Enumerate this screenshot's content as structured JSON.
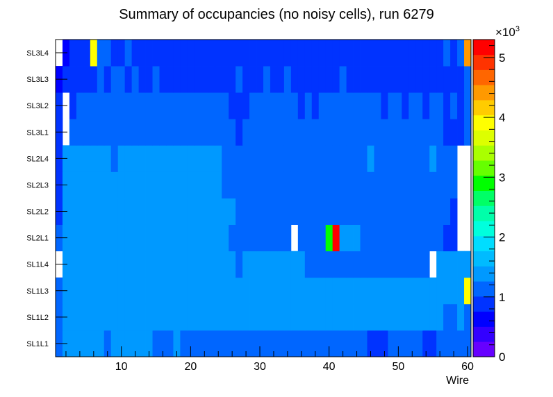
{
  "chart_data": {
    "type": "heatmap",
    "title": "Summary of occupancies (no noisy cells), run 6279",
    "xlabel": "Wire",
    "ylabel": "",
    "xlim": [
      0.5,
      60.5
    ],
    "x_ticks": [
      10,
      20,
      30,
      40,
      50,
      60
    ],
    "rows": [
      "SL1L1",
      "SL1L2",
      "SL1L3",
      "SL1L4",
      "SL2L1",
      "SL2L2",
      "SL2L3",
      "SL2L4",
      "SL3L1",
      "SL3L2",
      "SL3L3",
      "SL3L4"
    ],
    "wires": [
      1,
      2,
      3,
      4,
      5,
      6,
      7,
      8,
      9,
      10,
      11,
      12,
      13,
      14,
      15,
      16,
      17,
      18,
      19,
      20,
      21,
      22,
      23,
      24,
      25,
      26,
      27,
      28,
      29,
      30,
      31,
      32,
      33,
      34,
      35,
      36,
      37,
      38,
      39,
      40,
      41,
      42,
      43,
      44,
      45,
      46,
      47,
      48,
      49,
      50,
      51,
      52,
      53,
      54,
      55,
      56,
      57,
      58,
      59,
      60
    ],
    "z_range": [
      0,
      5300
    ],
    "z_multiplier_label": "×10",
    "z_multiplier_exponent": "3",
    "z_ticks": [
      {
        "value": 0,
        "label": "0"
      },
      {
        "value": 1000,
        "label": "1"
      },
      {
        "value": 2000,
        "label": "2"
      },
      {
        "value": 3000,
        "label": "3"
      },
      {
        "value": 4000,
        "label": "4"
      },
      {
        "value": 5000,
        "label": "5"
      }
    ],
    "palette": [
      "#6600ff",
      "#3300ff",
      "#0000ff",
      "#0033ff",
      "#0066ff",
      "#0099ff",
      "#00bbff",
      "#00ddff",
      "#00ffdd",
      "#00ffaa",
      "#00ff66",
      "#00ff00",
      "#66ff00",
      "#aaff00",
      "#ddff00",
      "#ffff00",
      "#ffcc00",
      "#ff9900",
      "#ff6600",
      "#ff3300",
      "#ff0000"
    ],
    "values": [
      [
        1180,
        1300,
        1300,
        1300,
        1300,
        1300,
        1300,
        1180,
        1300,
        1300,
        1300,
        1300,
        1300,
        1300,
        1180,
        1180,
        1180,
        1300,
        1180,
        1180,
        1180,
        1180,
        1180,
        1180,
        1180,
        1180,
        1180,
        1180,
        1180,
        1180,
        1180,
        1180,
        1180,
        1180,
        1180,
        1180,
        1180,
        1180,
        1180,
        1180,
        1180,
        1180,
        1180,
        1180,
        1180,
        820,
        820,
        820,
        1180,
        1180,
        1180,
        1180,
        1180,
        820,
        820,
        1180,
        1180,
        1180,
        1180,
        1180
      ],
      [
        1180,
        1300,
        1420,
        1420,
        1420,
        1420,
        1420,
        1420,
        1420,
        1420,
        1420,
        1420,
        1420,
        1420,
        1420,
        1420,
        1420,
        1420,
        1420,
        1420,
        1420,
        1420,
        1420,
        1420,
        1420,
        1420,
        1420,
        1420,
        1420,
        1420,
        1420,
        1420,
        1420,
        1420,
        1420,
        1420,
        1420,
        1420,
        1420,
        1420,
        1420,
        1420,
        1420,
        1420,
        1420,
        1420,
        1420,
        1420,
        1420,
        1420,
        1420,
        1420,
        1420,
        1420,
        1420,
        1420,
        1180,
        1180,
        1420,
        1180
      ],
      [
        1180,
        1420,
        1420,
        1420,
        1420,
        1420,
        1420,
        1420,
        1420,
        1420,
        1420,
        1420,
        1420,
        1420,
        1420,
        1420,
        1420,
        1420,
        1420,
        1420,
        1420,
        1420,
        1420,
        1420,
        1420,
        1300,
        1420,
        1420,
        1420,
        1420,
        1420,
        1420,
        1420,
        1420,
        1420,
        1420,
        1420,
        1420,
        1420,
        1420,
        1300,
        1420,
        1420,
        1420,
        1420,
        1300,
        1420,
        1420,
        1420,
        1420,
        1420,
        1300,
        1420,
        1300,
        1300,
        1420,
        1420,
        1300,
        1420,
        3900
      ],
      [
        null,
        1300,
        1300,
        1300,
        1300,
        1300,
        1300,
        1300,
        1300,
        1300,
        1300,
        1420,
        1420,
        1420,
        1300,
        1300,
        1300,
        1300,
        1300,
        1300,
        1300,
        1300,
        1300,
        1300,
        1300,
        1300,
        1180,
        1300,
        1300,
        1300,
        1300,
        1300,
        1300,
        1300,
        1300,
        1300,
        1180,
        1180,
        1180,
        1180,
        1180,
        1180,
        1180,
        1180,
        1180,
        1180,
        1180,
        1180,
        1180,
        1180,
        1180,
        1180,
        1180,
        1180,
        null,
        1300,
        1300,
        1300,
        1300,
        1300
      ],
      [
        1060,
        1300,
        1420,
        1420,
        1420,
        1300,
        1300,
        1300,
        1300,
        1300,
        1420,
        1420,
        1420,
        1420,
        1420,
        1420,
        1420,
        1300,
        1420,
        1300,
        1300,
        1300,
        1300,
        1300,
        1300,
        1180,
        1180,
        1180,
        1180,
        1180,
        1180,
        1180,
        1180,
        1180,
        null,
        1180,
        1180,
        1180,
        1180,
        2800,
        5300,
        1300,
        1300,
        1300,
        1180,
        1180,
        1180,
        1180,
        1180,
        1180,
        1180,
        1060,
        1180,
        1060,
        1180,
        1180,
        940,
        940,
        null,
        null
      ],
      [
        940,
        1300,
        1300,
        1420,
        1420,
        1300,
        1300,
        1300,
        1300,
        1300,
        1420,
        1420,
        1420,
        1420,
        1420,
        1420,
        1300,
        1300,
        1300,
        1300,
        1300,
        1300,
        1300,
        1300,
        1300,
        1300,
        1180,
        1180,
        1180,
        1180,
        1180,
        1180,
        1180,
        1180,
        1180,
        1180,
        1180,
        1180,
        1180,
        1180,
        1180,
        1180,
        1180,
        1180,
        1180,
        1180,
        1180,
        1060,
        1180,
        1180,
        1060,
        1180,
        1180,
        1180,
        1180,
        1180,
        1180,
        940,
        null,
        null
      ],
      [
        940,
        1300,
        1300,
        1420,
        1420,
        1300,
        1300,
        1300,
        1300,
        1300,
        1300,
        1420,
        1420,
        1420,
        1300,
        1300,
        1300,
        1300,
        1300,
        1300,
        1300,
        1300,
        1300,
        1300,
        1180,
        1180,
        1180,
        1180,
        1180,
        1180,
        1060,
        1180,
        1180,
        1180,
        1180,
        1180,
        1180,
        1180,
        1180,
        1180,
        1180,
        1180,
        1180,
        1180,
        1180,
        1180,
        1180,
        1060,
        1060,
        1060,
        1060,
        1060,
        1060,
        1180,
        1180,
        1180,
        1180,
        1180,
        null,
        null
      ],
      [
        940,
        1300,
        1300,
        1420,
        1420,
        1300,
        1300,
        1300,
        1180,
        1300,
        1300,
        1300,
        1300,
        1300,
        1420,
        1300,
        1300,
        1300,
        1300,
        1300,
        1300,
        1300,
        1300,
        1300,
        1180,
        1180,
        1180,
        1180,
        1180,
        1180,
        1180,
        1180,
        1060,
        1060,
        1180,
        1060,
        1180,
        1180,
        1180,
        1180,
        1180,
        1180,
        1180,
        1180,
        1180,
        1300,
        1060,
        1060,
        1060,
        1060,
        1060,
        1060,
        1060,
        1180,
        1300,
        1180,
        1180,
        1180,
        null,
        null
      ],
      [
        820,
        null,
        1060,
        1060,
        1060,
        1060,
        1060,
        1060,
        1060,
        1060,
        1060,
        1060,
        1060,
        1060,
        1060,
        1060,
        1060,
        1060,
        1060,
        1060,
        1060,
        1060,
        1060,
        1060,
        1060,
        1060,
        940,
        1060,
        1060,
        1060,
        1060,
        1060,
        1060,
        1060,
        1060,
        1060,
        1060,
        1060,
        1060,
        1060,
        1060,
        1060,
        1060,
        1060,
        1060,
        1060,
        1060,
        1060,
        1060,
        1060,
        1060,
        1060,
        1060,
        1060,
        1060,
        1060,
        940,
        940,
        940,
        1060
      ],
      [
        940,
        null,
        940,
        1060,
        1060,
        1060,
        1060,
        1060,
        1060,
        1060,
        1060,
        1060,
        1060,
        1060,
        1060,
        1060,
        1060,
        1060,
        1060,
        1060,
        1060,
        1060,
        1060,
        1060,
        1060,
        940,
        940,
        940,
        1060,
        1060,
        1060,
        1060,
        1060,
        1060,
        1060,
        940,
        1060,
        940,
        1060,
        1060,
        1060,
        1060,
        1060,
        1060,
        1060,
        1060,
        1060,
        940,
        1060,
        1060,
        940,
        1060,
        1060,
        940,
        1060,
        1060,
        940,
        1060,
        940,
        1060
      ],
      [
        700,
        940,
        940,
        940,
        940,
        940,
        1060,
        940,
        1060,
        1060,
        940,
        1060,
        940,
        940,
        1060,
        940,
        940,
        940,
        940,
        940,
        940,
        940,
        940,
        940,
        940,
        940,
        1060,
        940,
        940,
        940,
        1060,
        940,
        940,
        1060,
        940,
        940,
        940,
        940,
        940,
        940,
        940,
        1060,
        940,
        940,
        940,
        940,
        940,
        940,
        940,
        940,
        940,
        940,
        940,
        940,
        940,
        940,
        940,
        820,
        820,
        1060
      ],
      [
        null,
        700,
        820,
        940,
        940,
        3900,
        1060,
        1060,
        940,
        940,
        1060,
        940,
        940,
        940,
        940,
        940,
        940,
        940,
        940,
        940,
        940,
        940,
        940,
        940,
        940,
        940,
        940,
        940,
        940,
        940,
        940,
        940,
        940,
        940,
        940,
        940,
        940,
        940,
        940,
        940,
        940,
        940,
        940,
        940,
        940,
        940,
        940,
        940,
        940,
        940,
        940,
        940,
        940,
        940,
        940,
        940,
        1060,
        940,
        1060,
        4400
      ]
    ]
  }
}
